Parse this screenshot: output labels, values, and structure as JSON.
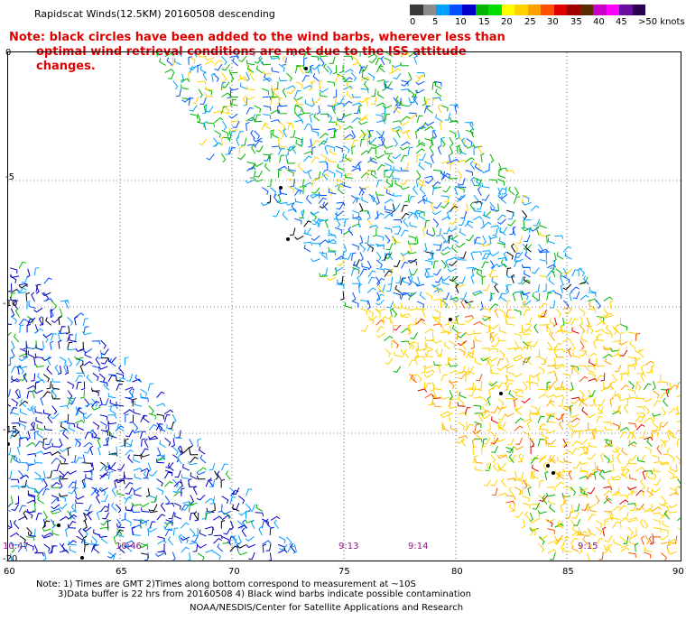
{
  "header": {
    "title": "Rapidscat Winds(12.5KM) 20160508 descending",
    "note_line1": "Note: black circles have been added to the wind barbs, wherever less than",
    "note_line2": "optimal wind retrieval conditions are met due to the ISS attitude changes."
  },
  "legend": {
    "labels": [
      "0",
      "5",
      "10",
      "15",
      "20",
      "25",
      "30",
      "35",
      "40",
      "45",
      ">50 knots"
    ],
    "colors": [
      "#3a3a3a",
      "#8c8c8c",
      "#00a0ff",
      "#0050ff",
      "#0000c8",
      "#00b400",
      "#00e000",
      "#ffff00",
      "#ffd200",
      "#ffa000",
      "#ff5000",
      "#e00000",
      "#a00000",
      "#5a2d00",
      "#c800c8",
      "#ff00ff",
      "#6a0ca0",
      "#2a0050"
    ]
  },
  "map": {
    "lat_labels": [
      "0",
      "-5",
      "-10",
      "-15",
      "-20"
    ],
    "lon_labels": [
      "60",
      "65",
      "70",
      "75",
      "80",
      "85",
      "90"
    ],
    "time_labels": [
      "10:47",
      "10:46",
      "9:13",
      "9:14",
      "9:15"
    ]
  },
  "footer": {
    "line1": "Note: 1) Times are GMT 2)Times along bottom correspond to measurement at ~10S",
    "line2": "3)Data buffer is 22 hrs from 20160508 4) Black wind barbs indicate possible contamination",
    "line3": "NOAA/NESDIS/Center for Satellite Applications and Research"
  }
}
